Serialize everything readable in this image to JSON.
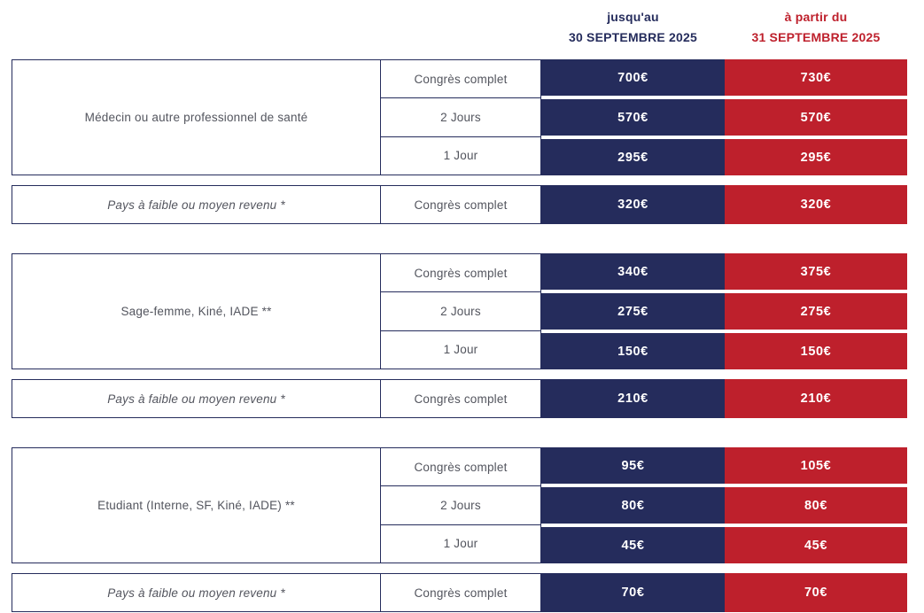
{
  "header": {
    "early": {
      "line1": "jusqu'au",
      "line2": "30 SEPTEMBRE 2025"
    },
    "late": {
      "line1": "à partir du",
      "line2": "31 SEPTEMBRE 2025"
    }
  },
  "colors": {
    "navy": "#252C5C",
    "red": "#BE202C",
    "label_text": "#53555E",
    "price_text": "#FFFFFF"
  },
  "groups": [
    {
      "category": "Médecin ou autre professionnel de santé",
      "rows": [
        {
          "option": "Congrès complet",
          "early": "700€",
          "late": "730€"
        },
        {
          "option": "2 Jours",
          "early": "570€",
          "late": "570€"
        },
        {
          "option": "1 Jour",
          "early": "295€",
          "late": "295€"
        }
      ]
    },
    {
      "category": "Pays à faible ou moyen revenu *",
      "rows": [
        {
          "option": "Congrès complet",
          "early": "320€",
          "late": "320€"
        }
      ]
    },
    {
      "category": "Sage-femme, Kiné, IADE **",
      "rows": [
        {
          "option": "Congrès complet",
          "early": "340€",
          "late": "375€"
        },
        {
          "option": "2 Jours",
          "early": "275€",
          "late": "275€"
        },
        {
          "option": "1 Jour",
          "early": "150€",
          "late": "150€"
        }
      ]
    },
    {
      "category": "Pays à faible ou moyen revenu *",
      "rows": [
        {
          "option": "Congrès complet",
          "early": "210€",
          "late": "210€"
        }
      ]
    },
    {
      "category": "Etudiant (Interne, SF, Kiné, IADE) **",
      "rows": [
        {
          "option": "Congrès complet",
          "early": "95€",
          "late": "105€"
        },
        {
          "option": "2 Jours",
          "early": "80€",
          "late": "80€"
        },
        {
          "option": "1 Jour",
          "early": "45€",
          "late": "45€"
        }
      ]
    },
    {
      "category": "Pays à faible ou moyen revenu *",
      "rows": [
        {
          "option": "Congrès complet",
          "early": "70€",
          "late": "70€"
        }
      ]
    }
  ]
}
